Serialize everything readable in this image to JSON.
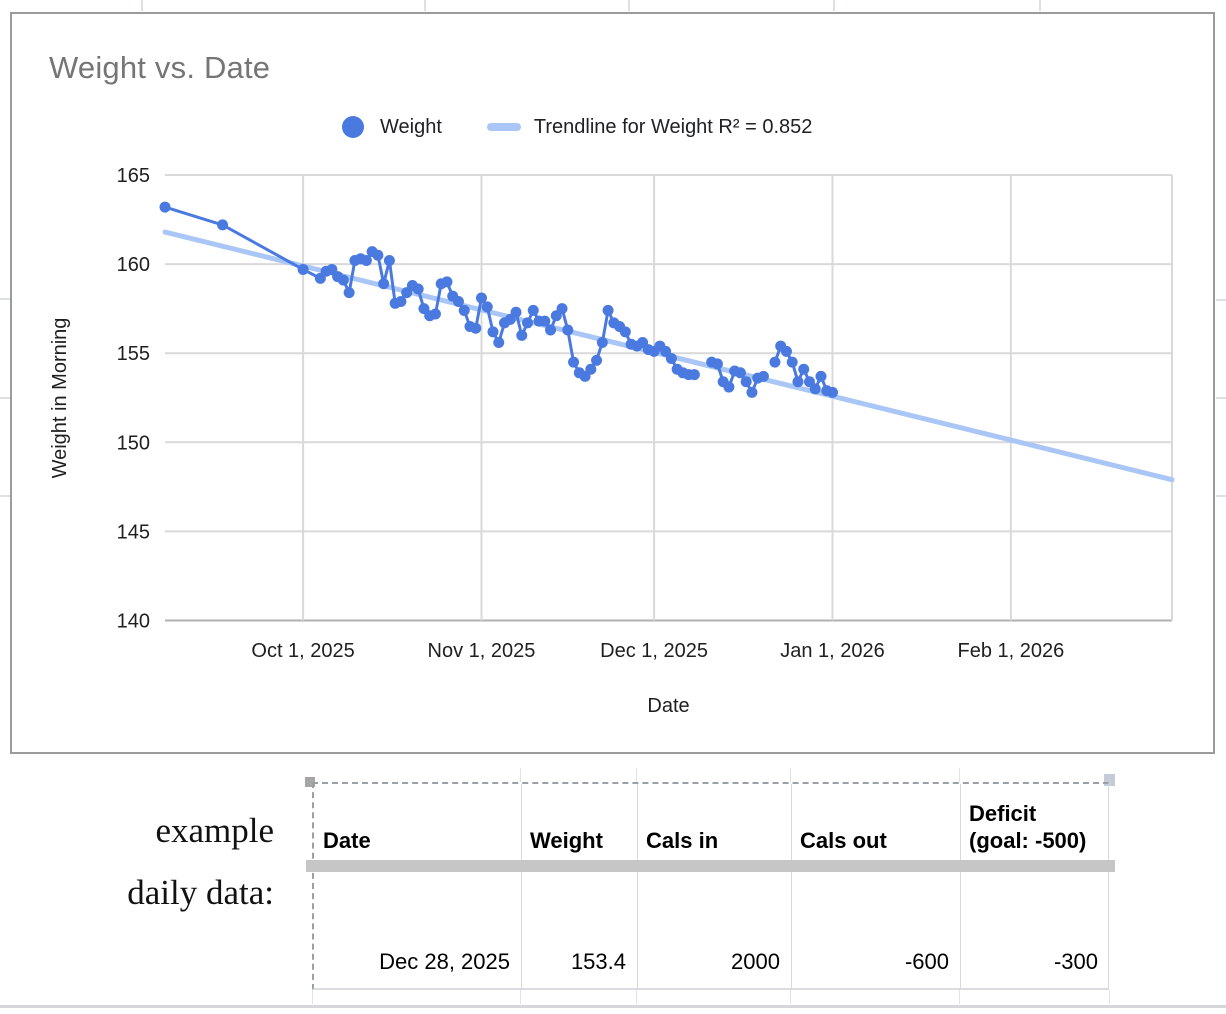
{
  "sheet": {
    "annotation": "example\ndaily data:"
  },
  "chart": {
    "title": "Weight vs. Date",
    "legend": {
      "weight_label": "Weight",
      "trendline_label": "Trendline for Weight R² = 0.852"
    }
  },
  "chart_data": {
    "type": "scatter",
    "title": "Weight vs. Date",
    "xlabel": "Date",
    "ylabel": "Weight in Morning",
    "x_domain": [
      "2025-09-07",
      "2026-03-01"
    ],
    "ylim": [
      140,
      165
    ],
    "y_ticks": [
      140,
      145,
      150,
      155,
      160,
      165
    ],
    "x_ticks": [
      {
        "date": "2025-10-01",
        "label": "Oct 1, 2025"
      },
      {
        "date": "2025-11-01",
        "label": "Nov 1, 2025"
      },
      {
        "date": "2025-12-01",
        "label": "Dec 1, 2025"
      },
      {
        "date": "2026-01-01",
        "label": "Jan 1, 2026"
      },
      {
        "date": "2026-02-01",
        "label": "Feb 1, 2026"
      }
    ],
    "grid": true,
    "legend_position": "top",
    "colors": {
      "series": "#4a7ae0",
      "trendline": "#a9c6f7",
      "gridline": "#d9d9d9",
      "baseline": "#b0b0b0"
    },
    "series": [
      {
        "name": "Weight",
        "color": "#4a7ae0",
        "points": [
          [
            "2025-09-07",
            163.2
          ],
          [
            "2025-09-17",
            162.2
          ],
          [
            "2025-10-01",
            159.7
          ],
          [
            "2025-10-04",
            159.2
          ],
          [
            "2025-10-05",
            159.6
          ],
          [
            "2025-10-06",
            159.7
          ],
          [
            "2025-10-07",
            159.3
          ],
          [
            "2025-10-08",
            159.1
          ],
          [
            "2025-10-09",
            158.4
          ],
          [
            "2025-10-10",
            160.2
          ],
          [
            "2025-10-11",
            160.3
          ],
          [
            "2025-10-12",
            160.2
          ],
          [
            "2025-10-13",
            160.7
          ],
          [
            "2025-10-14",
            160.5
          ],
          [
            "2025-10-15",
            158.9
          ],
          [
            "2025-10-16",
            160.2
          ],
          [
            "2025-10-17",
            157.8
          ],
          [
            "2025-10-18",
            157.9
          ],
          [
            "2025-10-19",
            158.4
          ],
          [
            "2025-10-20",
            158.8
          ],
          [
            "2025-10-21",
            158.6
          ],
          [
            "2025-10-22",
            157.5
          ],
          [
            "2025-10-23",
            157.1
          ],
          [
            "2025-10-24",
            157.2
          ],
          [
            "2025-10-25",
            158.9
          ],
          [
            "2025-10-26",
            159.0
          ],
          [
            "2025-10-27",
            158.2
          ],
          [
            "2025-10-28",
            157.9
          ],
          [
            "2025-10-29",
            157.4
          ],
          [
            "2025-10-30",
            156.5
          ],
          [
            "2025-10-31",
            156.4
          ],
          [
            "2025-11-01",
            158.1
          ],
          [
            "2025-11-02",
            157.6
          ],
          [
            "2025-11-03",
            156.2
          ],
          [
            "2025-11-04",
            155.6
          ],
          [
            "2025-11-05",
            156.7
          ],
          [
            "2025-11-06",
            156.9
          ],
          [
            "2025-11-07",
            157.3
          ],
          [
            "2025-11-08",
            156.0
          ],
          [
            "2025-11-09",
            156.7
          ],
          [
            "2025-11-10",
            157.4
          ],
          [
            "2025-11-11",
            156.8
          ],
          [
            "2025-11-12",
            156.8
          ],
          [
            "2025-11-13",
            156.3
          ],
          [
            "2025-11-14",
            157.1
          ],
          [
            "2025-11-15",
            157.5
          ],
          [
            "2025-11-16",
            156.3
          ],
          [
            "2025-11-17",
            154.5
          ],
          [
            "2025-11-18",
            153.9
          ],
          [
            "2025-11-19",
            153.7
          ],
          [
            "2025-11-20",
            154.1
          ],
          [
            "2025-11-21",
            154.6
          ],
          [
            "2025-11-22",
            155.6
          ],
          [
            "2025-11-23",
            157.4
          ],
          [
            "2025-11-24",
            156.7
          ],
          [
            "2025-11-25",
            156.5
          ],
          [
            "2025-11-26",
            156.2
          ],
          [
            "2025-11-27",
            155.5
          ],
          [
            "2025-11-28",
            155.4
          ],
          [
            "2025-11-29",
            155.6
          ],
          [
            "2025-11-30",
            155.2
          ],
          [
            "2025-12-01",
            155.1
          ],
          [
            "2025-12-02",
            155.4
          ],
          [
            "2025-12-03",
            155.1
          ],
          [
            "2025-12-04",
            154.7
          ],
          [
            "2025-12-05",
            154.1
          ],
          [
            "2025-12-06",
            153.9
          ],
          [
            "2025-12-07",
            153.8
          ],
          [
            "2025-12-08",
            153.8
          ],
          [
            "2025-12-09",
            null
          ],
          [
            "2025-12-10",
            null
          ],
          [
            "2025-12-11",
            154.5
          ],
          [
            "2025-12-12",
            154.4
          ],
          [
            "2025-12-13",
            153.4
          ],
          [
            "2025-12-14",
            153.1
          ],
          [
            "2025-12-15",
            154.0
          ],
          [
            "2025-12-16",
            153.9
          ],
          [
            "2025-12-17",
            153.4
          ],
          [
            "2025-12-18",
            152.8
          ],
          [
            "2025-12-19",
            153.6
          ],
          [
            "2025-12-20",
            153.7
          ],
          [
            "2025-12-21",
            null
          ],
          [
            "2025-12-22",
            154.5
          ],
          [
            "2025-12-23",
            155.4
          ],
          [
            "2025-12-24",
            155.1
          ],
          [
            "2025-12-25",
            154.5
          ],
          [
            "2025-12-26",
            153.4
          ],
          [
            "2025-12-27",
            154.1
          ],
          [
            "2025-12-28",
            153.4
          ],
          [
            "2025-12-29",
            153.0
          ],
          [
            "2025-12-30",
            153.7
          ],
          [
            "2025-12-31",
            152.9
          ],
          [
            "2026-01-01",
            152.8
          ]
        ]
      }
    ],
    "trendline": {
      "name": "Trendline for Weight R² = 0.852",
      "r_squared": 0.852,
      "color": "#a9c6f7",
      "start": [
        "2025-09-07",
        161.8
      ],
      "end": [
        "2026-03-01",
        147.9
      ]
    }
  },
  "table": {
    "headers": [
      "Date",
      "Weight",
      "Cals in",
      "Cals out",
      "Deficit\n(goal: -500)"
    ],
    "rows": [
      [
        "Dec 28, 2025",
        "153.4",
        "2000",
        "-600",
        "-300"
      ]
    ]
  }
}
